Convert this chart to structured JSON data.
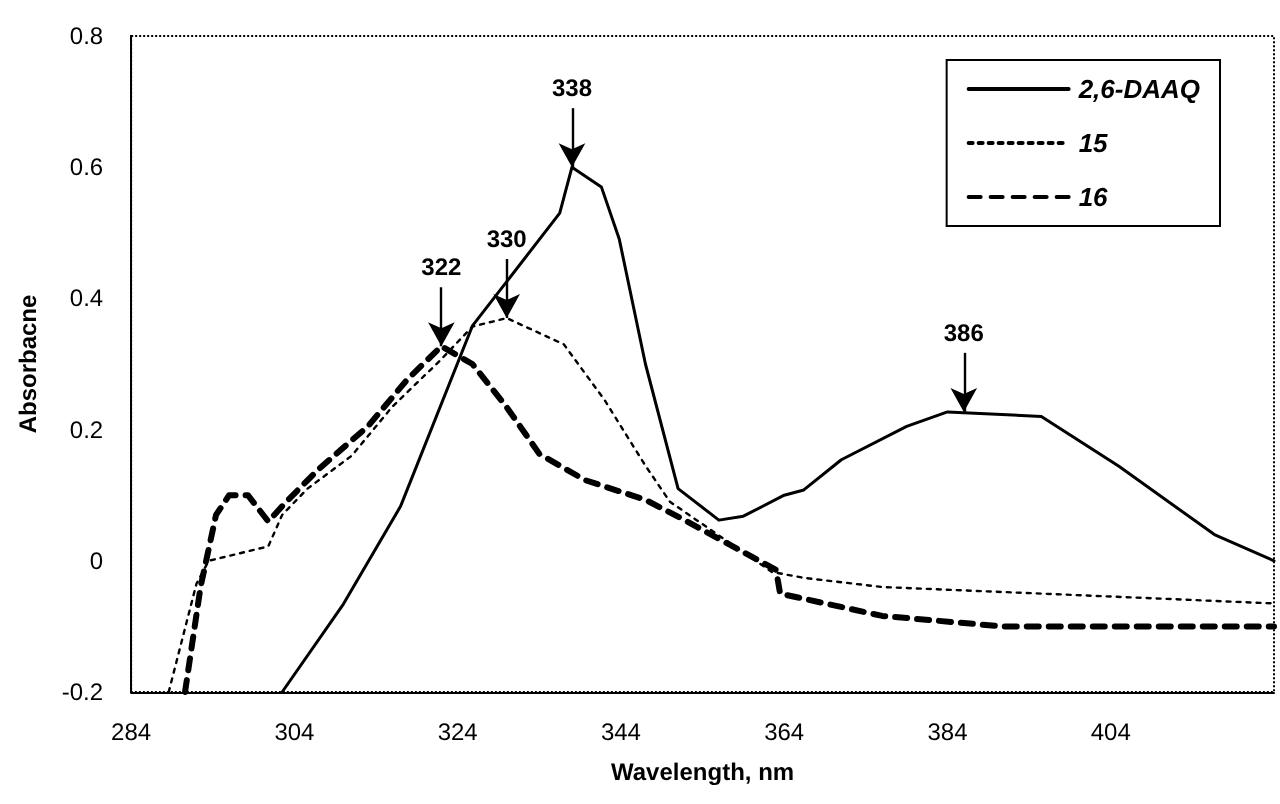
{
  "chart_data": {
    "type": "line",
    "xlabel": "Wavelength, nm",
    "ylabel": "Absorbacne",
    "xlim": [
      284,
      424
    ],
    "xticks": [
      284,
      304,
      324,
      344,
      364,
      384,
      404
    ],
    "ylim": [
      -0.2,
      0.8
    ],
    "yticks": [
      -0.2,
      0,
      0.2,
      0.4,
      0.6,
      0.8
    ],
    "grid": false,
    "legend": "top right",
    "marker": "none",
    "series": [
      {
        "name": "2,6-DAAQ",
        "color": "#000000",
        "line_style": "solid",
        "x": [
          302.5,
          310,
          317,
          325.8,
          336.5,
          338,
          341.6,
          343.8,
          347,
          351,
          356,
          359,
          364,
          366.4,
          371,
          379,
          384,
          395.5,
          405,
          416.7,
          424
        ],
        "values": [
          -0.2,
          -0.066,
          0.083,
          0.358,
          0.53,
          0.6,
          0.57,
          0.49,
          0.3,
          0.11,
          0.062,
          0.068,
          0.1,
          0.108,
          0.154,
          0.205,
          0.227,
          0.22,
          0.144,
          0.04,
          0.0
        ]
      },
      {
        "name": "15",
        "color": "#000000",
        "line_style": "dotted",
        "x": [
          288.6,
          292,
          293.5,
          300.8,
          302.5,
          305.6,
          311,
          316,
          321.9,
          325.8,
          330,
          337,
          342,
          347,
          350,
          362.5,
          366.4,
          376,
          395.5,
          424
        ],
        "values": [
          -0.2,
          -0.035,
          0.0,
          0.022,
          0.07,
          0.11,
          0.16,
          0.235,
          0.306,
          0.357,
          0.37,
          0.33,
          0.245,
          0.145,
          0.09,
          -0.017,
          -0.026,
          -0.04,
          -0.05,
          -0.065
        ]
      },
      {
        "name": "16",
        "color": "#000000",
        "line_style": "dashed",
        "x": [
          290.6,
          292.5,
          294.4,
          296,
          298.3,
          300.8,
          303,
          307,
          313,
          317.8,
          322,
          325.8,
          329.9,
          334,
          339.6,
          347,
          351.8,
          363,
          363.5,
          376,
          390.7,
          405,
          424
        ],
        "values": [
          -0.2,
          -0.04,
          0.07,
          0.1,
          0.1,
          0.06,
          0.09,
          0.14,
          0.205,
          0.276,
          0.327,
          0.3,
          0.236,
          0.163,
          0.123,
          0.093,
          0.062,
          -0.014,
          -0.05,
          -0.084,
          -0.1,
          -0.1,
          -0.1
        ]
      }
    ],
    "annotations": [
      {
        "text": "338",
        "x": 338,
        "y": 0.6
      },
      {
        "text": "330",
        "x": 330,
        "y": 0.37
      },
      {
        "text": "322",
        "x": 322,
        "y": 0.327
      },
      {
        "text": "386",
        "x": 386,
        "y": 0.227
      }
    ]
  }
}
